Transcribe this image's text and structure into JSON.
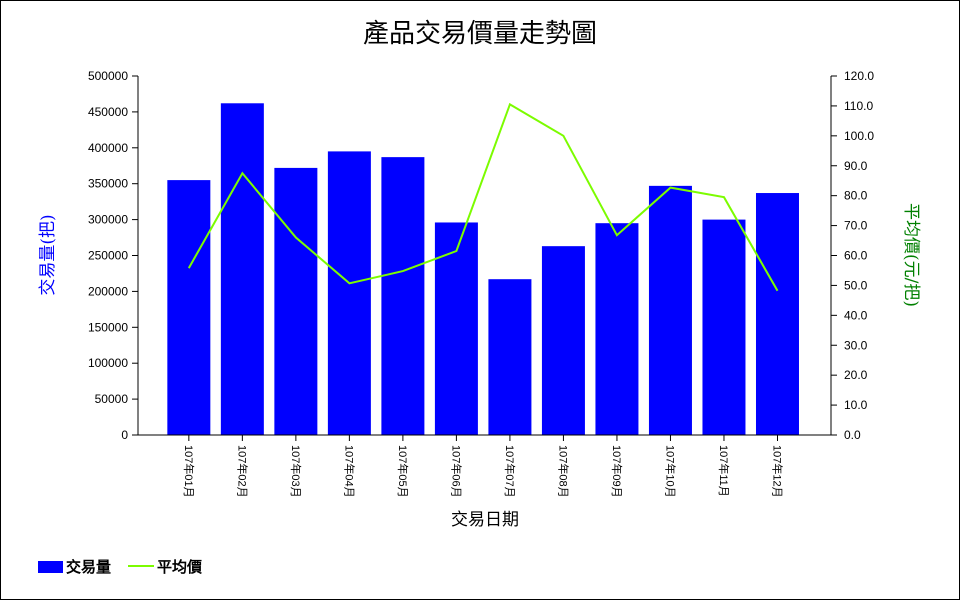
{
  "chart_data": {
    "type": "bar",
    "title": "產品交易價量走勢圖",
    "xlabel": "交易日期",
    "ylabel": "交易量(把)",
    "y2label": "平均價(元/把)",
    "categories": [
      "107年01月",
      "107年02月",
      "107年03月",
      "107年04月",
      "107年05月",
      "107年06月",
      "107年07月",
      "107年08月",
      "107年09月",
      "107年10月",
      "107年11月",
      "107年12月"
    ],
    "series": [
      {
        "name": "交易量",
        "type": "bar",
        "axis": "left",
        "color": "#0000ff",
        "values": [
          355000,
          462000,
          372000,
          395000,
          387000,
          296000,
          217000,
          263000,
          295000,
          347000,
          300000,
          337000
        ]
      },
      {
        "name": "平均價",
        "type": "line",
        "axis": "right",
        "color": "#7cfc00",
        "values": [
          55.8,
          87.5,
          66.0,
          50.7,
          54.8,
          61.5,
          110.5,
          100.0,
          66.8,
          82.7,
          79.5,
          48.2
        ]
      }
    ],
    "ylim": [
      0,
      500000
    ],
    "yticks": [
      "0",
      "50000",
      "100000",
      "150000",
      "200000",
      "250000",
      "300000",
      "350000",
      "400000",
      "450000",
      "500000"
    ],
    "y2lim": [
      0,
      120
    ],
    "y2ticks": [
      "0.0",
      "10.0",
      "20.0",
      "30.0",
      "40.0",
      "50.0",
      "60.0",
      "70.0",
      "80.0",
      "90.0",
      "100.0",
      "110.0",
      "120.0"
    ],
    "legend_position": "bottom-left",
    "grid": false,
    "ylabel_color": "#0000ff",
    "y2label_color": "#008000"
  }
}
